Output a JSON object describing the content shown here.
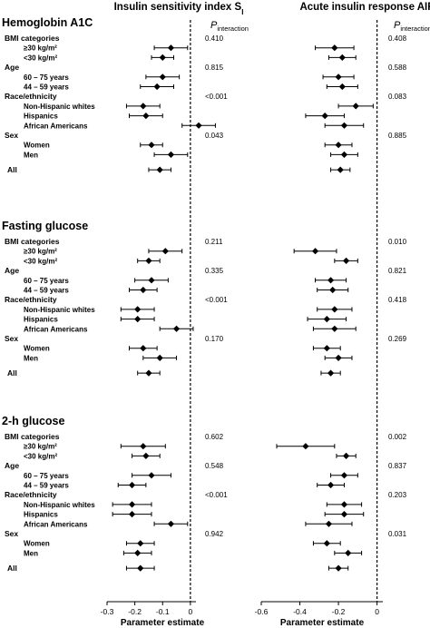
{
  "chart_data": {
    "type": "forest",
    "panels": [
      {
        "title": "Insulin sensitivity index S",
        "title_subscript": "I",
        "xlabel": "Parameter estimate",
        "xlim": [
          -0.3,
          0.02
        ],
        "xticks": [
          "-0.3",
          "-0.2",
          "-0.1",
          "0"
        ],
        "reference_line": 0
      },
      {
        "title": "Acute insulin response AIR",
        "title_subscript": "",
        "xlabel": "Parameter estimate",
        "xlim": [
          -0.6,
          0.03
        ],
        "xticks": [
          "-0.6",
          "-0.4",
          "-0.2",
          "0"
        ],
        "reference_line": 0
      }
    ],
    "p_interaction_header": {
      "main": "P",
      "sub": "interaction"
    },
    "sections": [
      {
        "title": "Hemoglobin A1C",
        "groups": [
          {
            "label": "BMI categories",
            "p": [
              "0.410",
              "0.408"
            ],
            "rows": [
              {
                "label": "≥30 kg/m²",
                "si": [
                  -0.07,
                  -0.13,
                  -0.01
                ],
                "air": [
                  -0.22,
                  -0.32,
                  -0.12
                ]
              },
              {
                "label": "<30 kg/m²",
                "si": [
                  -0.1,
                  -0.14,
                  -0.06
                ],
                "air": [
                  -0.18,
                  -0.25,
                  -0.11
                ]
              }
            ]
          },
          {
            "label": "Age",
            "p": [
              "0.815",
              "0.588"
            ],
            "rows": [
              {
                "label": "60 – 75 years",
                "si": [
                  -0.1,
                  -0.16,
                  -0.04
                ],
                "air": [
                  -0.2,
                  -0.28,
                  -0.12
                ]
              },
              {
                "label": "44 – 59 years",
                "si": [
                  -0.12,
                  -0.18,
                  -0.06
                ],
                "air": [
                  -0.18,
                  -0.26,
                  -0.1
                ]
              }
            ]
          },
          {
            "label": "Race/ethnicity",
            "p": [
              "<0.001",
              "0.083"
            ],
            "rows": [
              {
                "label": "Non-Hispanic whites",
                "si": [
                  -0.17,
                  -0.23,
                  -0.11
                ],
                "air": [
                  -0.11,
                  -0.2,
                  -0.02
                ]
              },
              {
                "label": "Hispanics",
                "si": [
                  -0.16,
                  -0.22,
                  -0.1
                ],
                "air": [
                  -0.27,
                  -0.37,
                  -0.17
                ]
              },
              {
                "label": "African Americans",
                "si": [
                  0.03,
                  -0.03,
                  0.09
                ],
                "air": [
                  -0.17,
                  -0.27,
                  -0.07
                ]
              }
            ]
          },
          {
            "label": "Sex",
            "p": [
              "0.043",
              "0.885"
            ],
            "rows": [
              {
                "label": "Women",
                "si": [
                  -0.14,
                  -0.18,
                  -0.1
                ],
                "air": [
                  -0.2,
                  -0.27,
                  -0.13
                ]
              },
              {
                "label": "Men",
                "si": [
                  -0.07,
                  -0.13,
                  -0.01
                ],
                "air": [
                  -0.17,
                  -0.24,
                  -0.1
                ]
              }
            ]
          },
          {
            "label": "All",
            "p": [
              "",
              ""
            ],
            "rows": [
              {
                "label": "",
                "si": [
                  -0.11,
                  -0.15,
                  -0.07
                ],
                "air": [
                  -0.19,
                  -0.24,
                  -0.14
                ]
              }
            ]
          }
        ]
      },
      {
        "title": "Fasting glucose",
        "groups": [
          {
            "label": "BMI categories",
            "p": [
              "0.211",
              "0.010"
            ],
            "rows": [
              {
                "label": "≥30 kg/m²",
                "si": [
                  -0.09,
                  -0.15,
                  -0.03
                ],
                "air": [
                  -0.32,
                  -0.43,
                  -0.21
                ]
              },
              {
                "label": "<30 kg/m²",
                "si": [
                  -0.15,
                  -0.19,
                  -0.11
                ],
                "air": [
                  -0.16,
                  -0.22,
                  -0.1
                ]
              }
            ]
          },
          {
            "label": "Age",
            "p": [
              "0.335",
              "0.821"
            ],
            "rows": [
              {
                "label": "60 – 75 years",
                "si": [
                  -0.14,
                  -0.2,
                  -0.08
                ],
                "air": [
                  -0.24,
                  -0.32,
                  -0.16
                ]
              },
              {
                "label": "44 – 59 years",
                "si": [
                  -0.17,
                  -0.22,
                  -0.12
                ],
                "air": [
                  -0.23,
                  -0.31,
                  -0.15
                ]
              }
            ]
          },
          {
            "label": "Race/ethnicity",
            "p": [
              "<0.001",
              "0.418"
            ],
            "rows": [
              {
                "label": "Non-Hispanic whites",
                "si": [
                  -0.19,
                  -0.25,
                  -0.13
                ],
                "air": [
                  -0.22,
                  -0.31,
                  -0.13
                ]
              },
              {
                "label": "Hispanics",
                "si": [
                  -0.19,
                  -0.25,
                  -0.13
                ],
                "air": [
                  -0.26,
                  -0.36,
                  -0.16
                ]
              },
              {
                "label": "African Americans",
                "si": [
                  -0.05,
                  -0.11,
                  0.01
                ],
                "air": [
                  -0.22,
                  -0.33,
                  -0.11
                ]
              }
            ]
          },
          {
            "label": "Sex",
            "p": [
              "0.170",
              "0.269"
            ],
            "rows": [
              {
                "label": "Women",
                "si": [
                  -0.17,
                  -0.22,
                  -0.12
                ],
                "air": [
                  -0.26,
                  -0.33,
                  -0.19
                ]
              },
              {
                "label": "Men",
                "si": [
                  -0.11,
                  -0.17,
                  -0.05
                ],
                "air": [
                  -0.2,
                  -0.27,
                  -0.13
                ]
              }
            ]
          },
          {
            "label": "All",
            "p": [
              "",
              ""
            ],
            "rows": [
              {
                "label": "",
                "si": [
                  -0.15,
                  -0.19,
                  -0.11
                ],
                "air": [
                  -0.24,
                  -0.29,
                  -0.19
                ]
              }
            ]
          }
        ]
      },
      {
        "title": "2-h glucose",
        "groups": [
          {
            "label": "BMI categories",
            "p": [
              "0.602",
              "0.002"
            ],
            "rows": [
              {
                "label": "≥30 kg/m²",
                "si": [
                  -0.17,
                  -0.25,
                  -0.09
                ],
                "air": [
                  -0.37,
                  -0.52,
                  -0.22
                ]
              },
              {
                "label": "<30 kg/m²",
                "si": [
                  -0.16,
                  -0.21,
                  -0.11
                ],
                "air": [
                  -0.16,
                  -0.21,
                  -0.11
                ]
              }
            ]
          },
          {
            "label": "Age",
            "p": [
              "0.548",
              "0.837"
            ],
            "rows": [
              {
                "label": "60 – 75 years",
                "si": [
                  -0.14,
                  -0.21,
                  -0.07
                ],
                "air": [
                  -0.17,
                  -0.24,
                  -0.1
                ]
              },
              {
                "label": "44 – 59 years",
                "si": [
                  -0.21,
                  -0.26,
                  -0.16
                ],
                "air": [
                  -0.24,
                  -0.31,
                  -0.17
                ]
              }
            ]
          },
          {
            "label": "Race/ethnicity",
            "p": [
              "<0.001",
              "0.203"
            ],
            "rows": [
              {
                "label": "Non-Hispanic whites",
                "si": [
                  -0.21,
                  -0.28,
                  -0.14
                ],
                "air": [
                  -0.17,
                  -0.26,
                  -0.08
                ]
              },
              {
                "label": "Hispanics",
                "si": [
                  -0.21,
                  -0.28,
                  -0.14
                ],
                "air": [
                  -0.17,
                  -0.27,
                  -0.07
                ]
              },
              {
                "label": "African Americans",
                "si": [
                  -0.07,
                  -0.13,
                  -0.01
                ],
                "air": [
                  -0.25,
                  -0.37,
                  -0.13
                ]
              }
            ]
          },
          {
            "label": "Sex",
            "p": [
              "0.942",
              "0.031"
            ],
            "rows": [
              {
                "label": "Women",
                "si": [
                  -0.18,
                  -0.23,
                  -0.13
                ],
                "air": [
                  -0.26,
                  -0.33,
                  -0.19
                ]
              },
              {
                "label": "Men",
                "si": [
                  -0.19,
                  -0.24,
                  -0.14
                ],
                "air": [
                  -0.15,
                  -0.22,
                  -0.08
                ]
              }
            ]
          },
          {
            "label": "All",
            "p": [
              "",
              ""
            ],
            "rows": [
              {
                "label": "",
                "si": [
                  -0.18,
                  -0.23,
                  -0.13
                ],
                "air": [
                  -0.2,
                  -0.25,
                  -0.15
                ]
              }
            ]
          }
        ]
      }
    ]
  }
}
